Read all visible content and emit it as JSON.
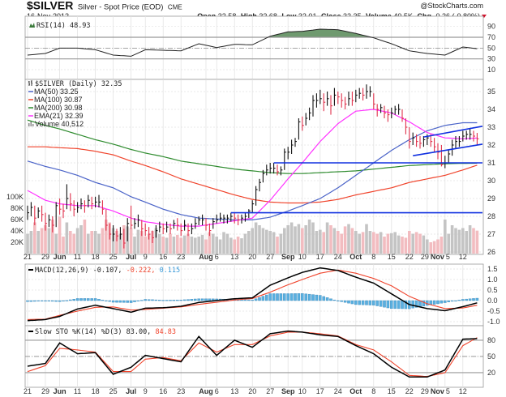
{
  "header": {
    "symbol": "$SILVER",
    "description": "Silver - Spot Price (EOD)",
    "exchange": "CME",
    "date": "16-Nov-2012",
    "watermark": "@StockCharts.com",
    "quote": {
      "open_label": "Open",
      "open": "32.58",
      "high_label": "High",
      "high": "32.68",
      "low_label": "Low",
      "low": "32.01",
      "close_label": "Close",
      "close": "32.35",
      "volume_label": "Volume",
      "volume": "40.5K",
      "chg_label": "Chg",
      "chg": "-0.26 (-0.80%)",
      "chg_direction": "down"
    }
  },
  "colors": {
    "up_bar": "#111111",
    "down_bar": "#e0304a",
    "up_volume": "#c4c4c4",
    "down_volume": "#f2bcc0",
    "ma50": "#4a63c8",
    "ma100": "#f0442c",
    "ma200": "#2e8b2e",
    "ema21": "#ff33ff",
    "rsi_fill": "#6f9a6f",
    "macd": "#000000",
    "signal": "#f0442c",
    "histogram": "#5ab0e0",
    "trendline": "#1030e0",
    "grid": "#e2e2e2"
  },
  "chart_data": [
    {
      "type": "line",
      "panel": "rsi",
      "legend": {
        "label": "RSI(14)",
        "value": "48.93"
      },
      "y_ticks": [
        "90",
        "70",
        "50",
        "30",
        "10"
      ],
      "ylim": [
        0,
        100
      ],
      "reference_lines": [
        70,
        50,
        30
      ],
      "dates": [
        "2012-05-21",
        "2012-05-29",
        "2012-06-04",
        "2012-06-11",
        "2012-06-18",
        "2012-06-25",
        "2012-07-02",
        "2012-07-09",
        "2012-07-16",
        "2012-07-23",
        "2012-07-30",
        "2012-08-06",
        "2012-08-13",
        "2012-08-20",
        "2012-08-27",
        "2012-09-04",
        "2012-09-10",
        "2012-09-17",
        "2012-09-24",
        "2012-10-01",
        "2012-10-08",
        "2012-10-15",
        "2012-10-22",
        "2012-10-29",
        "2012-11-05",
        "2012-11-12",
        "2012-11-16"
      ],
      "values": [
        37,
        40,
        50,
        50,
        47,
        37,
        35,
        47,
        46,
        45,
        58,
        51,
        57,
        56,
        72,
        80,
        81,
        85,
        84,
        77,
        69,
        58,
        45,
        40,
        37,
        52,
        48.93
      ]
    },
    {
      "type": "bar",
      "panel": "price",
      "legend": [
        {
          "label": "$SILVER (Daily)",
          "value": "32.35"
        },
        {
          "label": "MA(50)",
          "value": "33.25"
        },
        {
          "label": "MA(100)",
          "value": "30.87"
        },
        {
          "label": "MA(200)",
          "value": "30.98"
        },
        {
          "label": "EMA(21)",
          "value": "32.39"
        },
        {
          "label": "Volume",
          "value": "40,512"
        }
      ],
      "y_ticks": [
        "35",
        "34",
        "33",
        "32",
        "31",
        "30",
        "29",
        "28",
        "27",
        "26"
      ],
      "ylim": [
        25.9,
        35.7
      ],
      "volume_ticks": [
        "100K",
        "80K",
        "60K",
        "40K",
        "20K"
      ],
      "x_ticks": [
        {
          "label": "21",
          "date": "2012-05-21"
        },
        {
          "label": "29",
          "date": "2012-05-29"
        },
        {
          "label": "Jun",
          "date": "2012-06-04",
          "major": true
        },
        {
          "label": "11",
          "date": "2012-06-11"
        },
        {
          "label": "18",
          "date": "2012-06-18"
        },
        {
          "label": "25",
          "date": "2012-06-25"
        },
        {
          "label": "Jul",
          "date": "2012-07-02",
          "major": true
        },
        {
          "label": "9",
          "date": "2012-07-09"
        },
        {
          "label": "16",
          "date": "2012-07-16"
        },
        {
          "label": "23",
          "date": "2012-07-23"
        },
        {
          "label": "Aug",
          "date": "2012-08-01",
          "major": true
        },
        {
          "label": "6",
          "date": "2012-08-06"
        },
        {
          "label": "13",
          "date": "2012-08-13"
        },
        {
          "label": "20",
          "date": "2012-08-20"
        },
        {
          "label": "27",
          "date": "2012-08-27"
        },
        {
          "label": "Sep",
          "date": "2012-09-04",
          "major": true
        },
        {
          "label": "10",
          "date": "2012-09-10"
        },
        {
          "label": "17",
          "date": "2012-09-17"
        },
        {
          "label": "24",
          "date": "2012-09-24"
        },
        {
          "label": "Oct",
          "date": "2012-10-01",
          "major": true
        },
        {
          "label": "8",
          "date": "2012-10-08"
        },
        {
          "label": "15",
          "date": "2012-10-15"
        },
        {
          "label": "22",
          "date": "2012-10-22"
        },
        {
          "label": "29",
          "date": "2012-10-29"
        },
        {
          "label": "Nov",
          "date": "2012-11-01",
          "major": true
        },
        {
          "label": "5",
          "date": "2012-11-05"
        },
        {
          "label": "12",
          "date": "2012-11-12"
        }
      ],
      "close": [
        28.2,
        28.5,
        27.9,
        28.3,
        28.1,
        27.6,
        27.8,
        27.5,
        28.6,
        28.4,
        28.3,
        29.0,
        28.7,
        28.4,
        28.5,
        28.7,
        28.6,
        28.9,
        28.7,
        28.8,
        28.8,
        28.4,
        27.5,
        27.0,
        27.0,
        26.9,
        27.0,
        26.5,
        27.6,
        27.5,
        27.6,
        27.8,
        27.3,
        27.2,
        27.0,
        26.8,
        27.2,
        27.4,
        27.3,
        27.4,
        27.3,
        27.6,
        27.5,
        27.2,
        27.5,
        27.2,
        27.3,
        27.6,
        27.8,
        27.8,
        27.5,
        27.2,
        27.7,
        27.8,
        27.9,
        27.9,
        27.9,
        28.0,
        27.9,
        27.8,
        27.9,
        28.0,
        28.3,
        28.7,
        29.5,
        29.9,
        30.4,
        30.6,
        30.7,
        30.7,
        30.5,
        30.6,
        31.6,
        31.6,
        32.0,
        32.2,
        33.3,
        33.1,
        33.5,
        33.8,
        34.5,
        34.5,
        34.6,
        34.4,
        34.6,
        34.2,
        34.8,
        34.7,
        34.5,
        34.3,
        34.6,
        34.5,
        34.8,
        34.9,
        34.8,
        35.0,
        35.0,
        34.3,
        34.0,
        34.1,
        33.8,
        33.7,
        33.8,
        34.0,
        34.0,
        33.5,
        33.0,
        32.2,
        32.4,
        32.2,
        32.1,
        32.3,
        32.4,
        32.2,
        31.9,
        31.6,
        30.9,
        31.0,
        31.5,
        32.0,
        32.2,
        32.2,
        32.5,
        32.6,
        32.6,
        32.5,
        32.35
      ],
      "high": [
        28.6,
        28.8,
        28.6,
        28.5,
        28.6,
        28.2,
        28.1,
        28.0,
        28.8,
        29.0,
        28.7,
        29.8,
        29.3,
        28.9,
        28.8,
        29.0,
        28.9,
        29.2,
        29.1,
        29.1,
        29.2,
        28.9,
        28.4,
        27.6,
        27.5,
        27.3,
        27.4,
        27.3,
        27.9,
        28.6,
        27.9,
        28.1,
        27.8,
        27.6,
        27.4,
        27.2,
        27.5,
        27.7,
        27.6,
        27.7,
        27.6,
        27.8,
        27.9,
        27.6,
        27.8,
        27.6,
        27.6,
        27.9,
        28.0,
        28.1,
        27.9,
        27.6,
        27.9,
        28.1,
        28.2,
        28.1,
        28.1,
        28.2,
        28.2,
        28.1,
        28.1,
        28.2,
        28.4,
        28.9,
        29.7,
        30.1,
        30.6,
        30.9,
        31.0,
        31.0,
        30.9,
        30.8,
        31.8,
        31.9,
        32.3,
        32.4,
        33.5,
        33.6,
        33.8,
        34.1,
        34.8,
        34.9,
        35.1,
        34.9,
        35.0,
        34.8,
        35.2,
        35.0,
        34.9,
        34.7,
        35.0,
        35.0,
        35.1,
        35.2,
        35.2,
        35.4,
        35.3,
        34.9,
        34.3,
        34.3,
        34.2,
        34.0,
        34.1,
        34.2,
        34.3,
        34.0,
        33.5,
        33.0,
        32.7,
        32.6,
        32.5,
        32.5,
        32.6,
        32.6,
        32.4,
        32.1,
        32.0,
        31.4,
        31.7,
        32.3,
        32.5,
        32.5,
        32.8,
        32.8,
        32.9,
        32.8,
        32.68
      ],
      "low": [
        27.8,
        28.0,
        27.5,
        27.9,
        27.7,
        27.2,
        27.4,
        27.1,
        27.4,
        28.1,
        27.9,
        28.4,
        28.3,
        28.0,
        28.2,
        28.4,
        28.2,
        28.5,
        28.4,
        28.5,
        28.5,
        28.1,
        27.2,
        26.7,
        26.6,
        26.6,
        26.7,
        26.2,
        26.6,
        27.3,
        27.3,
        27.4,
        26.9,
        26.9,
        26.7,
        26.5,
        26.8,
        27.1,
        27.0,
        27.1,
        27.0,
        27.3,
        27.2,
        26.9,
        27.2,
        26.9,
        27.0,
        27.3,
        27.5,
        27.5,
        27.2,
        26.9,
        27.3,
        27.6,
        27.7,
        27.6,
        27.6,
        27.7,
        27.6,
        27.5,
        27.6,
        27.7,
        27.9,
        28.2,
        28.6,
        29.4,
        29.9,
        30.3,
        30.4,
        30.4,
        30.3,
        30.3,
        30.6,
        31.2,
        31.5,
        31.9,
        32.3,
        32.8,
        33.1,
        33.4,
        33.6,
        34.1,
        34.3,
        33.9,
        34.2,
        33.7,
        34.2,
        34.3,
        34.1,
        34.0,
        34.2,
        34.2,
        34.4,
        34.6,
        34.5,
        34.6,
        34.7,
        34.0,
        33.6,
        33.8,
        33.5,
        33.3,
        33.5,
        33.7,
        33.7,
        33.3,
        32.6,
        31.8,
        32.0,
        31.9,
        31.8,
        31.9,
        32.0,
        31.9,
        31.6,
        31.2,
        30.8,
        30.7,
        31.0,
        31.4,
        31.8,
        31.9,
        32.2,
        32.3,
        32.3,
        32.2,
        32.01
      ],
      "volume_k": [
        35,
        40,
        55,
        40,
        45,
        50,
        45,
        60,
        35,
        65,
        30,
        55,
        40,
        35,
        45,
        50,
        60,
        35,
        40,
        40,
        35,
        45,
        60,
        55,
        45,
        40,
        35,
        50,
        48,
        45,
        30,
        42,
        40,
        30,
        35,
        40,
        45,
        35,
        30,
        28,
        35,
        30,
        33,
        28,
        32,
        35,
        30,
        28,
        30,
        33,
        25,
        38,
        35,
        30,
        25,
        38,
        35,
        28,
        25,
        30,
        27,
        35,
        40,
        45,
        55,
        50,
        45,
        42,
        40,
        38,
        30,
        35,
        45,
        50,
        55,
        48,
        52,
        45,
        50,
        60,
        55,
        40,
        42,
        38,
        55,
        50,
        45,
        40,
        35,
        48,
        52,
        45,
        40,
        35,
        38,
        52,
        40,
        38,
        35,
        38,
        30,
        35,
        36,
        38,
        32,
        30,
        28,
        40,
        35,
        38,
        35,
        32,
        25,
        20,
        22,
        25,
        30,
        60,
        35,
        50,
        45,
        42,
        45,
        40,
        50,
        45,
        40.512
      ],
      "overlays": {
        "dates": [
          "2012-05-21",
          "2012-05-29",
          "2012-06-04",
          "2012-06-11",
          "2012-06-18",
          "2012-06-25",
          "2012-07-02",
          "2012-07-09",
          "2012-07-16",
          "2012-07-23",
          "2012-07-30",
          "2012-08-06",
          "2012-08-13",
          "2012-08-20",
          "2012-08-27",
          "2012-09-04",
          "2012-09-10",
          "2012-09-17",
          "2012-09-24",
          "2012-10-01",
          "2012-10-08",
          "2012-10-15",
          "2012-10-22",
          "2012-10-29",
          "2012-11-05",
          "2012-11-12",
          "2012-11-16"
        ],
        "ma50": [
          31.1,
          30.8,
          30.6,
          30.3,
          29.9,
          29.6,
          29.1,
          28.8,
          28.4,
          28.1,
          27.9,
          27.85,
          27.8,
          27.8,
          27.95,
          28.3,
          28.6,
          29.0,
          29.6,
          30.3,
          31.0,
          31.7,
          32.3,
          32.8,
          33.1,
          33.25,
          33.25
        ],
        "ma100": [
          31.9,
          31.9,
          31.85,
          31.8,
          31.65,
          31.45,
          31.1,
          30.85,
          30.5,
          30.1,
          29.8,
          29.5,
          29.2,
          28.95,
          28.8,
          28.75,
          28.75,
          28.8,
          28.95,
          29.2,
          29.4,
          29.6,
          29.9,
          30.1,
          30.3,
          30.6,
          30.87
        ],
        "ma200": [
          33.4,
          33.1,
          32.9,
          32.6,
          32.3,
          32.05,
          31.75,
          31.55,
          31.35,
          31.1,
          30.95,
          30.8,
          30.65,
          30.55,
          30.45,
          30.4,
          30.4,
          30.45,
          30.5,
          30.55,
          30.65,
          30.75,
          30.85,
          30.9,
          30.95,
          30.97,
          30.98
        ],
        "ema21": [
          29.45,
          28.9,
          28.7,
          28.6,
          28.6,
          28.3,
          27.9,
          27.7,
          27.55,
          27.45,
          27.45,
          27.6,
          27.75,
          27.9,
          28.9,
          30.1,
          31.0,
          32.2,
          33.2,
          33.9,
          34.0,
          33.8,
          33.3,
          32.7,
          32.4,
          32.35,
          32.39
        ]
      },
      "trendlines": [
        {
          "from_date": "2012-08-10",
          "from": 28.2,
          "to_date": "2012-11-16",
          "to": 28.2
        },
        {
          "from_date": "2012-08-28",
          "from": 31.0,
          "to_date": "2012-11-16",
          "to": 31.0
        },
        {
          "from_date": "2012-10-26",
          "from": 32.45,
          "to_date": "2012-11-16",
          "to": 33.0
        },
        {
          "from_date": "2012-10-23",
          "from": 31.4,
          "to_date": "2012-11-16",
          "to": 32.0
        }
      ]
    },
    {
      "type": "line",
      "panel": "macd",
      "legend": {
        "label": "MACD(12,26,9)",
        "macd": "-0.107,",
        "signal": "-0.222,",
        "histogram": "0.115"
      },
      "y_ticks": [
        "1.5",
        "1.0",
        "0.5",
        "0.0",
        "-0.5",
        "-1.0"
      ],
      "ylim": [
        -1.15,
        1.75
      ],
      "dates": [
        "2012-05-21",
        "2012-05-29",
        "2012-06-04",
        "2012-06-11",
        "2012-06-18",
        "2012-06-25",
        "2012-07-02",
        "2012-07-09",
        "2012-07-16",
        "2012-07-23",
        "2012-07-30",
        "2012-08-06",
        "2012-08-13",
        "2012-08-20",
        "2012-08-27",
        "2012-09-04",
        "2012-09-10",
        "2012-09-17",
        "2012-09-24",
        "2012-10-01",
        "2012-10-08",
        "2012-10-15",
        "2012-10-22",
        "2012-10-29",
        "2012-11-05",
        "2012-11-12",
        "2012-11-16"
      ],
      "macd": [
        -0.95,
        -0.9,
        -0.75,
        -0.4,
        -0.22,
        -0.38,
        -0.55,
        -0.36,
        -0.34,
        -0.27,
        -0.09,
        0.0,
        0.09,
        0.13,
        0.73,
        1.08,
        1.34,
        1.55,
        1.43,
        1.11,
        0.83,
        0.32,
        -0.19,
        -0.38,
        -0.48,
        -0.29,
        -0.107
      ],
      "signal": [
        -0.9,
        -0.88,
        -0.7,
        -0.5,
        -0.32,
        -0.3,
        -0.45,
        -0.42,
        -0.36,
        -0.3,
        -0.18,
        -0.08,
        0.03,
        0.1,
        0.4,
        0.75,
        1.0,
        1.3,
        1.45,
        1.3,
        1.05,
        0.7,
        0.2,
        -0.15,
        -0.38,
        -0.35,
        -0.222
      ]
    },
    {
      "type": "line",
      "panel": "stochastic",
      "legend": {
        "label": "Slow STO %K(14) %D(3)",
        "k": "83.00,",
        "d": "84.83"
      },
      "y_ticks": [
        "80",
        "50",
        "20"
      ],
      "ylim": [
        0,
        100
      ],
      "reference_lines": [
        80,
        50,
        20
      ],
      "dates": [
        "2012-05-21",
        "2012-05-29",
        "2012-06-04",
        "2012-06-11",
        "2012-06-18",
        "2012-06-25",
        "2012-07-02",
        "2012-07-09",
        "2012-07-16",
        "2012-07-23",
        "2012-07-30",
        "2012-08-06",
        "2012-08-13",
        "2012-08-20",
        "2012-08-27",
        "2012-09-04",
        "2012-09-10",
        "2012-09-17",
        "2012-09-24",
        "2012-10-01",
        "2012-10-08",
        "2012-10-15",
        "2012-10-22",
        "2012-10-29",
        "2012-11-05",
        "2012-11-12",
        "2012-11-16"
      ],
      "k": [
        32,
        37,
        75,
        55,
        57,
        17,
        30,
        52,
        46,
        40,
        87,
        52,
        80,
        67,
        92,
        97,
        95,
        90,
        87,
        70,
        55,
        30,
        12,
        12,
        25,
        82,
        83.0
      ],
      "d": [
        22,
        33,
        65,
        62,
        58,
        22,
        22,
        45,
        48,
        42,
        75,
        58,
        72,
        72,
        88,
        95,
        95,
        92,
        88,
        72,
        62,
        40,
        15,
        13,
        20,
        70,
        84.83
      ]
    }
  ]
}
